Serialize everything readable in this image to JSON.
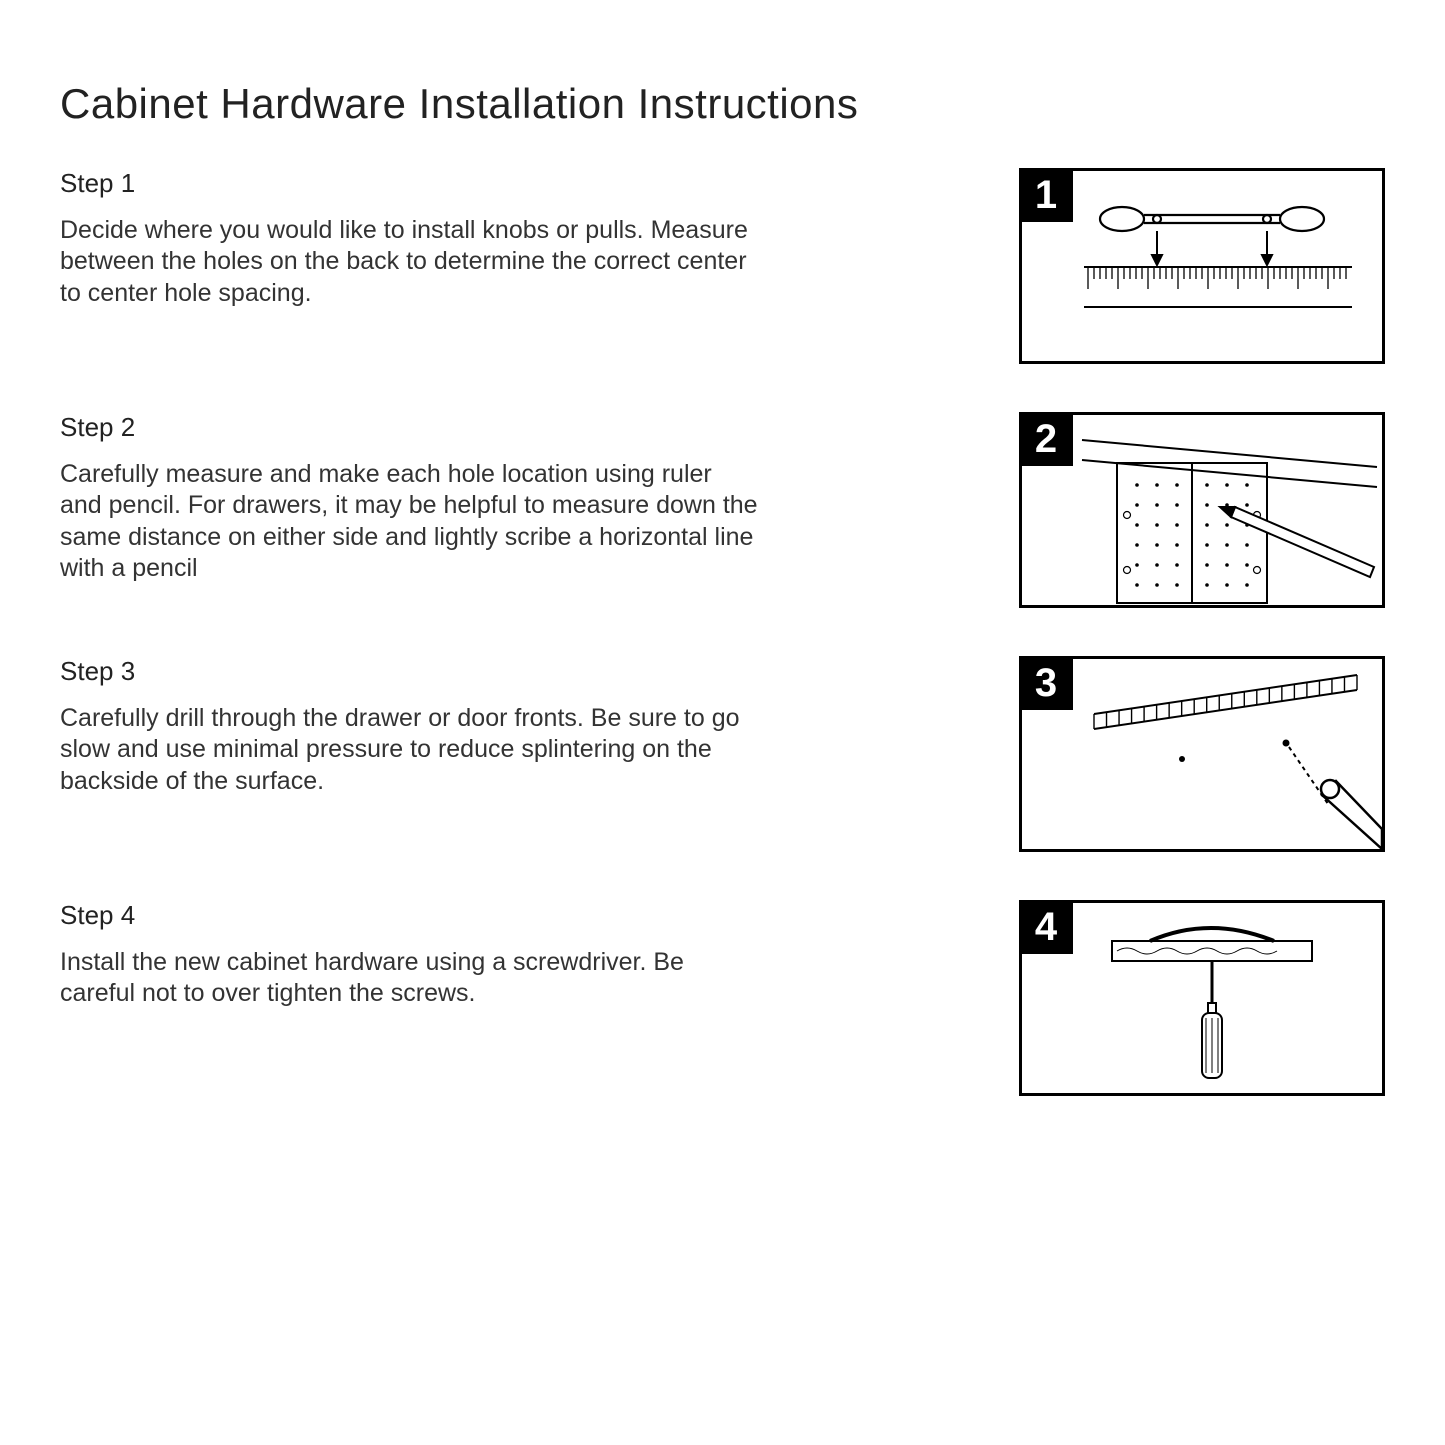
{
  "title": "Cabinet Hardware Installation Instructions",
  "steps": [
    {
      "num": "1",
      "heading": "Step 1",
      "body": "Decide where you would like to install knobs or pulls.\nMeasure between the holes on the back to determine the correct center to center hole spacing."
    },
    {
      "num": "2",
      "heading": "Step 2",
      "body": "Carefully measure and make each hole location using ruler and pencil. For drawers, it may be helpful to measure down the same distance on either side and lightly scribe a horizontal line with a pencil"
    },
    {
      "num": "3",
      "heading": "Step 3",
      "body": "Carefully drill through the drawer or door fronts. Be sure to go slow and use minimal pressure to reduce splintering on the backside of the surface."
    },
    {
      "num": "4",
      "heading": "Step 4",
      "body": "Install the new cabinet hardware using a screwdriver. Be careful not to over tighten the screws."
    }
  ],
  "style": {
    "page_bg": "#ffffff",
    "text_color": "#222222",
    "title_fontsize": 42,
    "heading_fontsize": 26,
    "body_fontsize": 25,
    "figure_border": "#000000",
    "badge_bg": "#000000",
    "badge_fg": "#ffffff",
    "figure_w": 360,
    "figure_h": 190
  }
}
